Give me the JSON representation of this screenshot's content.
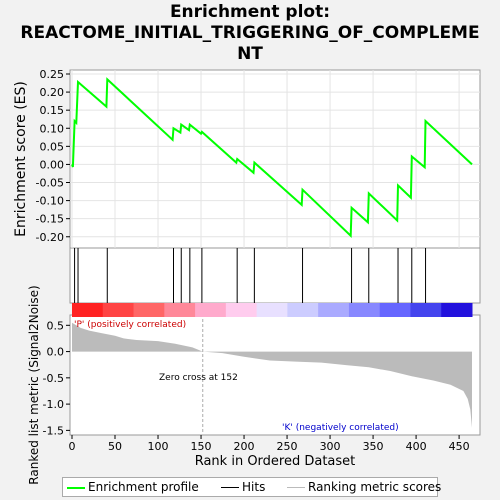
{
  "title_lines": [
    "Enrichment plot:",
    "REACTOME_INITIAL_TRIGGERING_OF_COMPLEME",
    "NT"
  ],
  "chart_data": {
    "type": "line",
    "n_genes": 465,
    "es_panel": {
      "ylabel": "Enrichment score (ES)",
      "ylim": [
        -0.22,
        0.25
      ],
      "yticks": [
        0.25,
        0.2,
        0.15,
        0.1,
        0.05,
        0.0,
        -0.05,
        -0.1,
        -0.15,
        -0.2
      ],
      "ytick_labels": [
        "0.25",
        "0.20",
        "0.15",
        "0.10",
        "0.05",
        "0.00",
        "-0.05",
        "-0.10",
        "-0.15",
        "-0.20"
      ],
      "color": "#00ff00",
      "points": [
        [
          0,
          0
        ],
        [
          1,
          -0.007
        ],
        [
          3,
          0.12
        ],
        [
          5,
          0.115
        ],
        [
          7,
          0.228
        ],
        [
          40,
          0.16
        ],
        [
          41,
          0.235
        ],
        [
          117,
          0.068
        ],
        [
          118,
          0.1
        ],
        [
          126,
          0.088
        ],
        [
          127,
          0.11
        ],
        [
          136,
          0.095
        ],
        [
          137,
          0.11
        ],
        [
          150,
          0.085
        ],
        [
          151,
          0.09
        ],
        [
          191,
          0.005
        ],
        [
          192,
          0.015
        ],
        [
          211,
          -0.023
        ],
        [
          212,
          0.005
        ],
        [
          267,
          -0.112
        ],
        [
          268,
          -0.07
        ],
        [
          324,
          -0.197
        ],
        [
          325,
          -0.12
        ],
        [
          344,
          -0.16
        ],
        [
          345,
          -0.08
        ],
        [
          378,
          -0.155
        ],
        [
          379,
          -0.058
        ],
        [
          394,
          -0.092
        ],
        [
          395,
          0.022
        ],
        [
          410,
          -0.008
        ],
        [
          411,
          0.12
        ],
        [
          465,
          0
        ]
      ]
    },
    "hits": [
      3,
      7,
      41,
      118,
      127,
      137,
      151,
      192,
      212,
      268,
      325,
      345,
      379,
      395,
      411
    ],
    "color_bar": [
      "#ff2222",
      "#ff4444",
      "#ff6666",
      "#ff8899",
      "#ffaacc",
      "#ffccee",
      "#e8e0ff",
      "#ccccff",
      "#aaaaff",
      "#8888ff",
      "#6666ff",
      "#4444ee",
      "#2211dd"
    ],
    "ranking_panel": {
      "ylabel": "Ranked list metric (Signal2Noise)",
      "ylim": [
        -1.55,
        0.62
      ],
      "yticks": [
        0.5,
        0.0,
        -0.5,
        -1.0,
        -1.5
      ],
      "ytick_labels": [
        "0.5",
        "0.0",
        "-0.5",
        "-1.0",
        "-1.5"
      ],
      "fill_color": "#bbbbbb",
      "curve": [
        [
          0,
          0.55
        ],
        [
          10,
          0.45
        ],
        [
          20,
          0.4
        ],
        [
          35,
          0.35
        ],
        [
          50,
          0.3
        ],
        [
          60,
          0.25
        ],
        [
          75,
          0.22
        ],
        [
          100,
          0.2
        ],
        [
          120,
          0.15
        ],
        [
          140,
          0.08
        ],
        [
          152,
          0.0
        ],
        [
          175,
          -0.03
        ],
        [
          200,
          -0.1
        ],
        [
          230,
          -0.17
        ],
        [
          260,
          -0.19
        ],
        [
          290,
          -0.21
        ],
        [
          320,
          -0.26
        ],
        [
          345,
          -0.3
        ],
        [
          370,
          -0.37
        ],
        [
          395,
          -0.47
        ],
        [
          420,
          -0.55
        ],
        [
          440,
          -0.63
        ],
        [
          455,
          -0.75
        ],
        [
          460,
          -0.9
        ],
        [
          463,
          -1.1
        ],
        [
          465,
          -1.45
        ]
      ],
      "zero_cross_label": "Zero cross at 152",
      "zero_cross": 152,
      "pos_label": "'P' (positively correlated)",
      "neg_label": "'K' (negatively correlated)"
    },
    "xlabel": "Rank in Ordered Dataset",
    "xticks": [
      0,
      50,
      100,
      150,
      200,
      250,
      300,
      350,
      400,
      450
    ],
    "xtick_labels": [
      "0",
      "50",
      "100",
      "150",
      "200",
      "250",
      "300",
      "350",
      "400",
      "450"
    ]
  },
  "legend": {
    "items": [
      {
        "label": "Enrichment profile",
        "color": "#00ff00"
      },
      {
        "label": "Hits",
        "color": "#000000"
      },
      {
        "label": "Ranking metric scores",
        "color": "#bbbbbb"
      }
    ]
  }
}
